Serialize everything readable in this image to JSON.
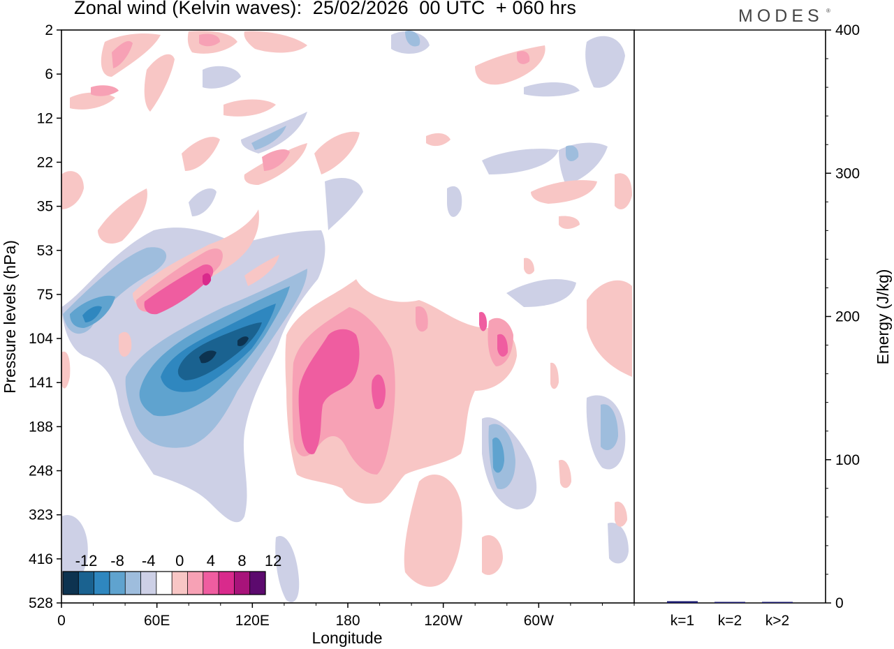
{
  "chart_data": [
    {
      "type": "heatmap",
      "title": "Zonal wind (Kelvin waves):  25/02/2026  00 UTC  + 060 hrs",
      "xlabel": "Longitude",
      "ylabel": "Pressure levels (hPa)",
      "x_ticks": [
        "0",
        "60E",
        "120E",
        "180",
        "120W",
        "60W"
      ],
      "x_tick_values": [
        0,
        60,
        120,
        180,
        240,
        300
      ],
      "xlim": [
        0,
        360
      ],
      "y_ticks": [
        "2",
        "6",
        "12",
        "22",
        "35",
        "53",
        "75",
        "104",
        "141",
        "188",
        "248",
        "323",
        "416",
        "528"
      ],
      "colorbar": {
        "tick_labels": [
          "-12",
          "-8",
          "-4",
          "0",
          "4",
          "8",
          "12"
        ],
        "levels": [
          -14,
          -12,
          -10,
          -8,
          -6,
          -4,
          -2,
          2,
          4,
          6,
          8,
          10,
          12,
          14
        ],
        "colors": [
          "#0d3350",
          "#1a6290",
          "#2f87bf",
          "#5fa3cf",
          "#9ebddd",
          "#cdd0e6",
          "#ffffff",
          "#f8c6c5",
          "#f7a1b5",
          "#ef5da0",
          "#d92a8c",
          "#a8137a",
          "#5c0a6e"
        ]
      },
      "features": [
        {
          "name": "negative-core-lower-strat",
          "lon_center": 96,
          "level": "104-141",
          "min_value": -14
        },
        {
          "name": "positive-core-dateline",
          "lon_center": 160,
          "level": "141-188",
          "max_value": 8
        },
        {
          "name": "positive-band-upper",
          "lon_center": 80,
          "level": "53-104",
          "max_value": 8
        },
        {
          "name": "negative-band-upper",
          "lon_center": 20,
          "level": "75-104",
          "min_value": -8
        }
      ]
    },
    {
      "type": "bar",
      "categories": [
        "k=1",
        "k=2",
        "k>2"
      ],
      "values": [
        1.2,
        0.6,
        0.6
      ],
      "ylabel": "Energy (J/kg)",
      "ylim": [
        0,
        400
      ],
      "y_ticks": [
        "0",
        "100",
        "200",
        "300",
        "400"
      ],
      "y_tick_values": [
        0,
        100,
        200,
        300,
        400
      ],
      "bar_color": "#1a1a6e"
    }
  ],
  "brand": {
    "name": "MODES",
    "mark": "®"
  }
}
